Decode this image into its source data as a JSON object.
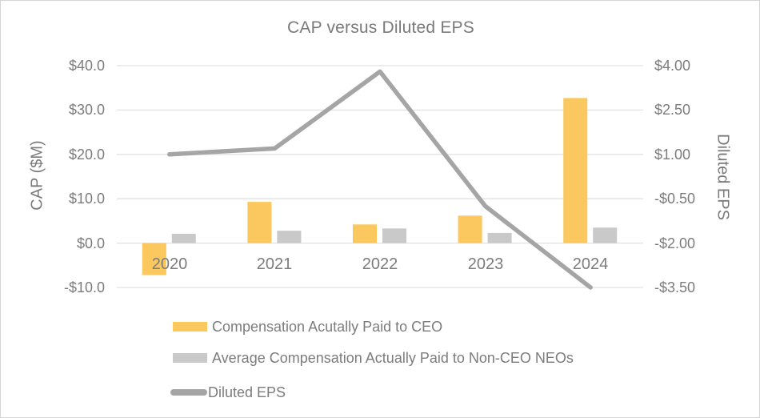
{
  "chart_data": {
    "type": "combo-bar-line",
    "title": "CAP versus Diluted EPS",
    "categories": [
      "2020",
      "2021",
      "2022",
      "2023",
      "2024"
    ],
    "series": [
      {
        "name": "Compensation Acutally Paid to CEO",
        "type": "bar",
        "axis": "left",
        "color": "#fac85e",
        "values": [
          -7.2,
          9.3,
          4.2,
          6.2,
          32.7
        ]
      },
      {
        "name": "Average Compensation Actually Paid to Non-CEO NEOs",
        "type": "bar",
        "axis": "left",
        "color": "#c9c9c9",
        "values": [
          2.1,
          2.8,
          3.3,
          2.3,
          3.5
        ]
      },
      {
        "name": "Diluted EPS",
        "type": "line",
        "axis": "right",
        "color": "#a5a5a5",
        "values": [
          1.0,
          1.2,
          3.8,
          -0.75,
          -3.5
        ]
      }
    ],
    "left_axis": {
      "label": "CAP ($M)",
      "min": -10,
      "max": 40,
      "ticks": [
        "$40.0",
        "$30.0",
        "$20.0",
        "$10.0",
        "$0.0",
        "-$10.0"
      ],
      "tick_values": [
        40,
        30,
        20,
        10,
        0,
        -10
      ]
    },
    "right_axis": {
      "label": "Diluted EPS",
      "min": -3.5,
      "max": 4,
      "ticks": [
        "$4.00",
        "$2.50",
        "$1.00",
        "-$0.50",
        "-$2.00",
        "-$3.50"
      ],
      "tick_values": [
        4,
        2.5,
        1,
        -0.5,
        -2,
        -3.5
      ]
    },
    "grid": true,
    "legend_position": "bottom-left",
    "gridline_color": "#e2e2e2",
    "text_color": "#7c7c7c"
  }
}
